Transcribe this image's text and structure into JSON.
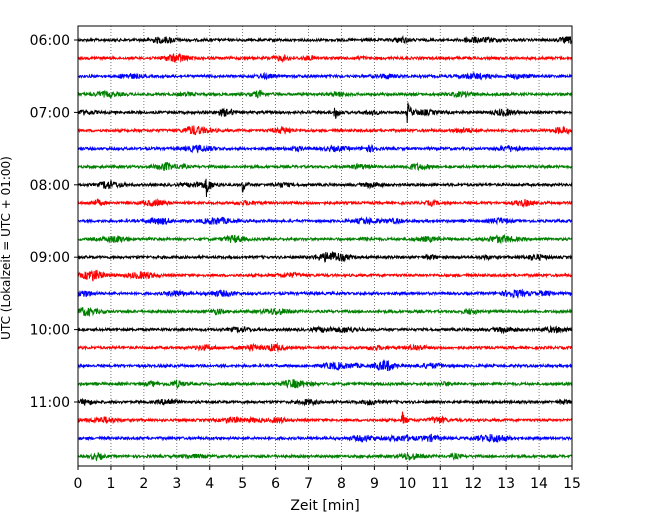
{
  "chart_data": {
    "type": "line",
    "title": "",
    "xlabel": "Zeit  [min]",
    "ylabel": "UTC (Lokalzeit = UTC + 01:00)",
    "xlim": [
      0,
      15
    ],
    "x_ticks": [
      "0",
      "1",
      "2",
      "3",
      "4",
      "5",
      "6",
      "7",
      "8",
      "9",
      "10",
      "11",
      "12",
      "13",
      "14",
      "15"
    ],
    "y_ticks": [
      {
        "label": "06:00",
        "trace_index": 0
      },
      {
        "label": "07:00",
        "trace_index": 4
      },
      {
        "label": "08:00",
        "trace_index": 8
      },
      {
        "label": "09:00",
        "trace_index": 12
      },
      {
        "label": "10:00",
        "trace_index": 16
      },
      {
        "label": "11:00",
        "trace_index": 20
      }
    ],
    "grid": "vertical dotted",
    "legend": "none",
    "color_cycle": [
      "#000000",
      "#ff0000",
      "#0000ff",
      "#008000"
    ],
    "trace_count": 24,
    "trace_interval_min": 15,
    "events": [
      {
        "trace_index": 4,
        "x": 7.8,
        "amplitude": 8
      },
      {
        "trace_index": 4,
        "x": 10.0,
        "amplitude": 11
      },
      {
        "trace_index": 8,
        "x": 3.9,
        "amplitude": 9
      },
      {
        "trace_index": 8,
        "x": 5.0,
        "amplitude": 8
      },
      {
        "trace_index": 21,
        "x": 9.85,
        "amplitude": 8
      }
    ]
  }
}
